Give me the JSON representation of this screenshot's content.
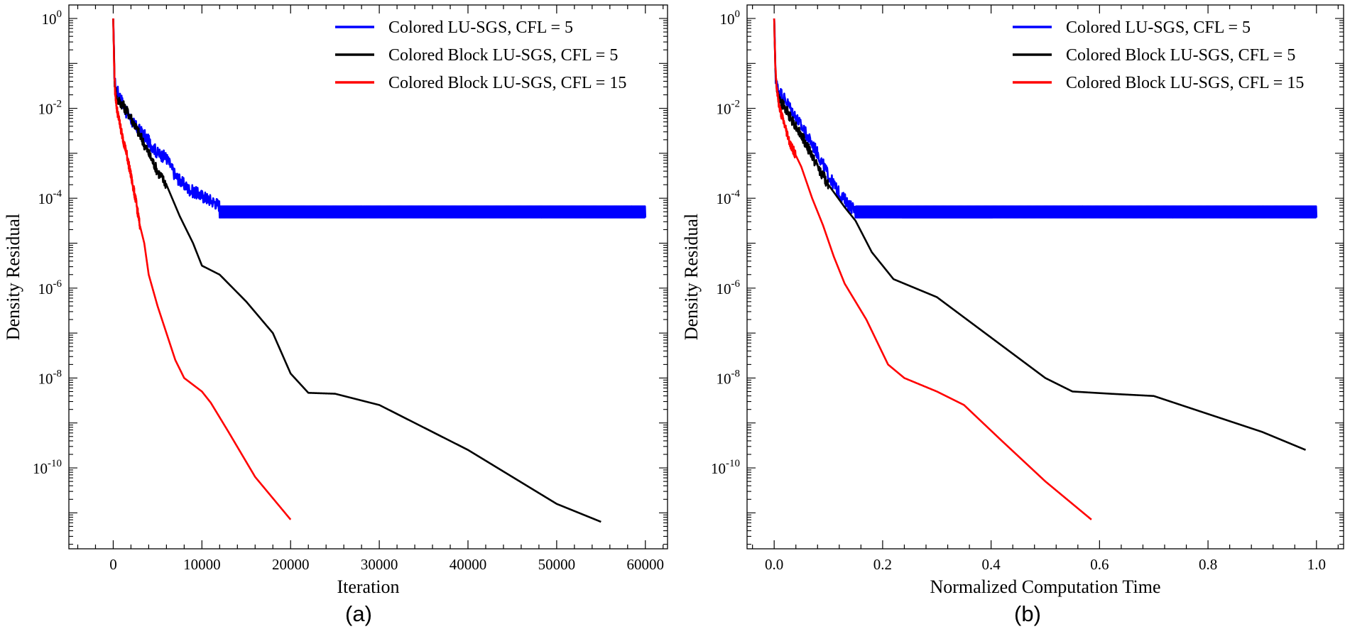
{
  "chart_data": [
    {
      "type": "line",
      "panel_label": "(a)",
      "xlabel": "Iteration",
      "ylabel": "Density Residual",
      "xlim": [
        -5000,
        62500
      ],
      "ylim_log10": [
        -11.8,
        0.3
      ],
      "yscale": "log",
      "x_ticks": [
        0,
        10000,
        20000,
        30000,
        40000,
        50000,
        60000
      ],
      "x_tick_labels": [
        "0",
        "10000",
        "20000",
        "30000",
        "40000",
        "50000",
        "60000"
      ],
      "y_ticks_log10": [
        0,
        -2,
        -4,
        -6,
        -8,
        -10
      ],
      "y_tick_mantissa": [
        "10",
        "10",
        "10",
        "10",
        "10",
        "10"
      ],
      "y_tick_exponents": [
        "0",
        "-2",
        "-4",
        "-6",
        "-8",
        "-10"
      ],
      "legend_position": "top-right",
      "series": [
        {
          "name": "Colored LU-SGS, CFL = 5",
          "color": "#0000ff",
          "noise_amp": 0.14,
          "noise_until_x": 60000,
          "plateau_band": [
            -4.43,
            -4.18
          ],
          "plateau_from_x": 12000,
          "x": [
            0,
            150,
            400,
            700,
            1500,
            2500,
            3500,
            5000,
            6000,
            7000,
            8500,
            10000,
            11500,
            13000,
            60000
          ],
          "log10_y": [
            0,
            -1.4,
            -1.6,
            -1.7,
            -2.1,
            -2.4,
            -2.6,
            -3.0,
            -3.1,
            -3.5,
            -3.8,
            -3.95,
            -4.1,
            -4.3,
            -4.3
          ]
        },
        {
          "name": "Colored Block LU-SGS, CFL = 5",
          "color": "#000000",
          "noise_amp": 0.12,
          "noise_until_x": 6000,
          "x": [
            0,
            150,
            400,
            1000,
            2000,
            3000,
            4000,
            5000,
            6000,
            7500,
            9000,
            10000,
            12000,
            15000,
            18000,
            20000,
            22000,
            25000,
            30000,
            40000,
            50000,
            55000
          ],
          "log10_y": [
            0,
            -1.4,
            -1.8,
            -1.9,
            -2.2,
            -2.6,
            -3.0,
            -3.4,
            -3.7,
            -4.4,
            -5.0,
            -5.5,
            -5.7,
            -6.3,
            -7.0,
            -7.9,
            -8.33,
            -8.35,
            -8.6,
            -9.6,
            -10.8,
            -11.2
          ]
        },
        {
          "name": "Colored Block LU-SGS, CFL = 15",
          "color": "#ff0000",
          "noise_amp": 0.1,
          "noise_until_x": 3000,
          "x": [
            0,
            100,
            200,
            400,
            700,
            1000,
            1500,
            2000,
            2500,
            3000,
            3500,
            4000,
            5000,
            6000,
            7000,
            8000,
            9000,
            10000,
            11000,
            13000,
            16000,
            20000
          ],
          "log10_y": [
            0,
            -1.0,
            -1.6,
            -2.0,
            -2.3,
            -2.6,
            -3.0,
            -3.5,
            -4.0,
            -4.6,
            -5.0,
            -5.7,
            -6.4,
            -7.0,
            -7.6,
            -8.0,
            -8.15,
            -8.3,
            -8.55,
            -9.2,
            -10.2,
            -11.15
          ]
        }
      ]
    },
    {
      "type": "line",
      "panel_label": "(b)",
      "xlabel": "Normalized Computation Time",
      "ylabel": "Density Residual",
      "xlim": [
        -0.05,
        1.05
      ],
      "ylim_log10": [
        -11.8,
        0.3
      ],
      "yscale": "log",
      "x_ticks": [
        0,
        0.2,
        0.4,
        0.6,
        0.8,
        1.0
      ],
      "x_tick_labels": [
        "0.0",
        "0.2",
        "0.4",
        "0.6",
        "0.8",
        "1.0"
      ],
      "y_ticks_log10": [
        0,
        -2,
        -4,
        -6,
        -8,
        -10
      ],
      "y_tick_mantissa": [
        "10",
        "10",
        "10",
        "10",
        "10",
        "10"
      ],
      "y_tick_exponents": [
        "0",
        "-2",
        "-4",
        "-6",
        "-8",
        "-10"
      ],
      "legend_position": "top-right",
      "series": [
        {
          "name": "Colored LU-SGS, CFL = 5",
          "color": "#0000ff",
          "noise_amp": 0.14,
          "noise_until_x": 1.0,
          "plateau_band": [
            -4.43,
            -4.18
          ],
          "plateau_from_x": 0.15,
          "x": [
            0,
            0.003,
            0.008,
            0.02,
            0.04,
            0.06,
            0.08,
            0.1,
            0.12,
            0.15,
            0.2,
            1.0
          ],
          "log10_y": [
            0,
            -1.4,
            -1.6,
            -1.8,
            -2.2,
            -2.6,
            -3.0,
            -3.5,
            -3.9,
            -4.3,
            -4.3,
            -4.3
          ]
        },
        {
          "name": "Colored Block LU-SGS, CFL = 5",
          "color": "#000000",
          "noise_amp": 0.12,
          "noise_until_x": 0.1,
          "x": [
            0,
            0.003,
            0.008,
            0.02,
            0.05,
            0.08,
            0.1,
            0.13,
            0.15,
            0.18,
            0.22,
            0.3,
            0.4,
            0.5,
            0.55,
            0.62,
            0.7,
            0.8,
            0.9,
            0.98
          ],
          "log10_y": [
            0,
            -1.4,
            -1.8,
            -2.0,
            -2.6,
            -3.3,
            -3.7,
            -4.2,
            -4.5,
            -5.2,
            -5.8,
            -6.2,
            -7.1,
            -8.0,
            -8.3,
            -8.35,
            -8.4,
            -8.8,
            -9.2,
            -9.6
          ],
          "end_marker": false
        },
        {
          "name": "Colored Block LU-SGS, CFL = 15",
          "color": "#ff0000",
          "noise_amp": 0.1,
          "noise_until_x": 0.04,
          "x": [
            0,
            0.002,
            0.005,
            0.01,
            0.02,
            0.03,
            0.05,
            0.07,
            0.09,
            0.11,
            0.13,
            0.15,
            0.17,
            0.19,
            0.21,
            0.24,
            0.27,
            0.3,
            0.35,
            0.42,
            0.5,
            0.585
          ],
          "log10_y": [
            0,
            -1.0,
            -1.6,
            -2.0,
            -2.4,
            -2.8,
            -3.3,
            -4.0,
            -4.6,
            -5.3,
            -5.9,
            -6.3,
            -6.7,
            -7.2,
            -7.7,
            -8.0,
            -8.15,
            -8.3,
            -8.6,
            -9.4,
            -10.3,
            -11.15
          ]
        }
      ]
    }
  ]
}
